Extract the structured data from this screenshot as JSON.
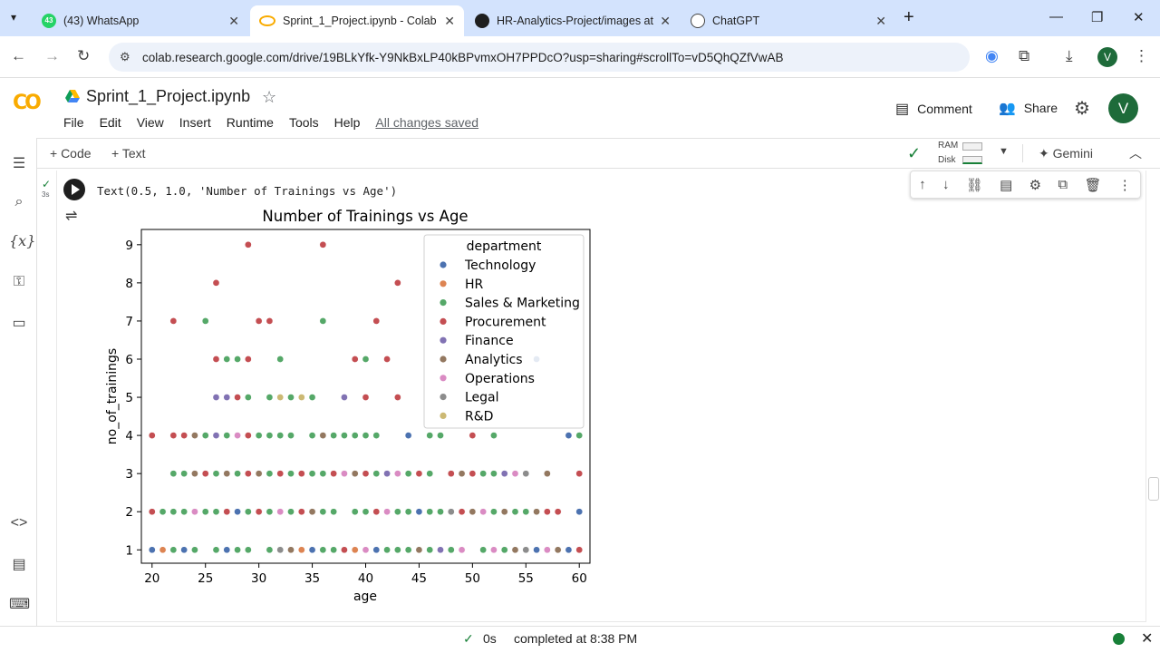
{
  "browser": {
    "tabs": [
      {
        "title": "(43) WhatsApp",
        "icon": "whatsapp-icon",
        "badge": "43"
      },
      {
        "title": "Sprint_1_Project.ipynb - Colab",
        "icon": "colab-icon"
      },
      {
        "title": "HR-Analytics-Project/images at",
        "icon": "github-icon"
      },
      {
        "title": "ChatGPT",
        "icon": "chatgpt-icon"
      }
    ],
    "url": "colab.research.google.com/drive/19BLkYfk-Y9NkBxLP40kBPvmxOH7PPDcO?usp=sharing#scrollTo=vD5QhQZfVwAB",
    "profile_initial": "V"
  },
  "colab": {
    "notebook_title": "Sprint_1_Project.ipynb",
    "menu": [
      "File",
      "Edit",
      "View",
      "Insert",
      "Runtime",
      "Tools",
      "Help"
    ],
    "save_status": "All changes saved",
    "comment_label": "Comment",
    "share_label": "Share",
    "user_initial": "V",
    "add_code": "+ Code",
    "add_text": "+ Text",
    "ram_label": "RAM",
    "disk_label": "Disk",
    "gemini_label": "Gemini",
    "exec_time": "3s"
  },
  "output": {
    "text": "Text(0.5, 1.0, 'Number of Trainings vs Age')"
  },
  "status": {
    "time": "0s",
    "message": "completed at 8:38 PM"
  },
  "chart_data": {
    "type": "scatter",
    "title": "Number of Trainings vs Age",
    "xlabel": "age",
    "ylabel": "no_of_trainings",
    "xlim": [
      19,
      61
    ],
    "ylim": [
      0.65,
      9.4
    ],
    "xticks": [
      20,
      25,
      30,
      35,
      40,
      45,
      50,
      55,
      60
    ],
    "yticks": [
      1,
      2,
      3,
      4,
      5,
      6,
      7,
      8,
      9
    ],
    "legend_title": "department",
    "legend_position": "upper right",
    "series": [
      {
        "name": "Technology",
        "color": "#4c72b0",
        "points": [
          [
            20,
            1
          ],
          [
            23,
            1
          ],
          [
            27,
            1
          ],
          [
            31,
            1
          ],
          [
            35,
            1
          ],
          [
            41,
            1
          ],
          [
            48,
            1
          ],
          [
            53,
            1
          ],
          [
            56,
            1
          ],
          [
            59,
            1
          ],
          [
            28,
            2
          ],
          [
            30,
            2
          ],
          [
            35,
            2
          ],
          [
            45,
            2
          ],
          [
            60,
            2
          ],
          [
            44,
            4
          ],
          [
            59,
            4
          ],
          [
            48,
            3
          ],
          [
            56,
            6
          ]
        ]
      },
      {
        "name": "HR",
        "color": "#dd8452",
        "points": [
          [
            21,
            1
          ],
          [
            34,
            1
          ],
          [
            39,
            1
          ],
          [
            49,
            1
          ],
          [
            57,
            1
          ]
        ]
      },
      {
        "name": "Sales & Marketing",
        "color": "#55a868",
        "points": [
          [
            22,
            1
          ],
          [
            24,
            1
          ],
          [
            26,
            1
          ],
          [
            28,
            1
          ],
          [
            29,
            1
          ],
          [
            31,
            1
          ],
          [
            32,
            1
          ],
          [
            36,
            1
          ],
          [
            37,
            1
          ],
          [
            38,
            1
          ],
          [
            42,
            1
          ],
          [
            43,
            1
          ],
          [
            44,
            1
          ],
          [
            46,
            1
          ],
          [
            48,
            1
          ],
          [
            51,
            1
          ],
          [
            53,
            1
          ],
          [
            55,
            1
          ],
          [
            21,
            2
          ],
          [
            22,
            2
          ],
          [
            23,
            2
          ],
          [
            24,
            2
          ],
          [
            25,
            2
          ],
          [
            26,
            2
          ],
          [
            27,
            2
          ],
          [
            29,
            2
          ],
          [
            31,
            2
          ],
          [
            33,
            2
          ],
          [
            36,
            2
          ],
          [
            37,
            2
          ],
          [
            39,
            2
          ],
          [
            40,
            2
          ],
          [
            43,
            2
          ],
          [
            44,
            2
          ],
          [
            46,
            2
          ],
          [
            47,
            2
          ],
          [
            52,
            2
          ],
          [
            54,
            2
          ],
          [
            55,
            2
          ],
          [
            22,
            3
          ],
          [
            23,
            3
          ],
          [
            26,
            3
          ],
          [
            28,
            3
          ],
          [
            31,
            3
          ],
          [
            33,
            3
          ],
          [
            35,
            3
          ],
          [
            36,
            3
          ],
          [
            38,
            3
          ],
          [
            41,
            3
          ],
          [
            44,
            3
          ],
          [
            46,
            3
          ],
          [
            51,
            3
          ],
          [
            52,
            3
          ],
          [
            25,
            4
          ],
          [
            27,
            4
          ],
          [
            28,
            4
          ],
          [
            30,
            4
          ],
          [
            31,
            4
          ],
          [
            32,
            4
          ],
          [
            33,
            4
          ],
          [
            35,
            4
          ],
          [
            36,
            4
          ],
          [
            37,
            4
          ],
          [
            38,
            4
          ],
          [
            39,
            4
          ],
          [
            40,
            4
          ],
          [
            41,
            4
          ],
          [
            46,
            4
          ],
          [
            47,
            4
          ],
          [
            52,
            4
          ],
          [
            60,
            4
          ],
          [
            29,
            5
          ],
          [
            31,
            5
          ],
          [
            33,
            5
          ],
          [
            35,
            5
          ],
          [
            27,
            6
          ],
          [
            28,
            6
          ],
          [
            32,
            6
          ],
          [
            40,
            6
          ],
          [
            25,
            7
          ],
          [
            36,
            7
          ]
        ]
      },
      {
        "name": "Procurement",
        "color": "#c44e52",
        "points": [
          [
            38,
            1
          ],
          [
            60,
            1
          ],
          [
            20,
            2
          ],
          [
            27,
            2
          ],
          [
            30,
            2
          ],
          [
            34,
            2
          ],
          [
            41,
            2
          ],
          [
            49,
            2
          ],
          [
            57,
            2
          ],
          [
            58,
            2
          ],
          [
            25,
            3
          ],
          [
            29,
            3
          ],
          [
            32,
            3
          ],
          [
            34,
            3
          ],
          [
            37,
            3
          ],
          [
            40,
            3
          ],
          [
            42,
            3
          ],
          [
            45,
            3
          ],
          [
            48,
            3
          ],
          [
            50,
            3
          ],
          [
            60,
            3
          ],
          [
            20,
            4
          ],
          [
            22,
            4
          ],
          [
            23,
            4
          ],
          [
            29,
            4
          ],
          [
            50,
            4
          ],
          [
            28,
            5
          ],
          [
            40,
            5
          ],
          [
            43,
            5
          ],
          [
            26,
            6
          ],
          [
            29,
            6
          ],
          [
            39,
            6
          ],
          [
            42,
            6
          ],
          [
            22,
            7
          ],
          [
            30,
            7
          ],
          [
            31,
            7
          ],
          [
            41,
            7
          ],
          [
            26,
            8
          ],
          [
            43,
            8
          ],
          [
            29,
            9
          ],
          [
            36,
            9
          ]
        ]
      },
      {
        "name": "Finance",
        "color": "#8172b3",
        "points": [
          [
            47,
            1
          ],
          [
            26,
            4
          ],
          [
            42,
            3
          ],
          [
            53,
            3
          ],
          [
            26,
            5
          ],
          [
            27,
            5
          ],
          [
            38,
            5
          ]
        ]
      },
      {
        "name": "Analytics",
        "color": "#937860",
        "points": [
          [
            33,
            1
          ],
          [
            45,
            1
          ],
          [
            54,
            1
          ],
          [
            58,
            1
          ],
          [
            35,
            2
          ],
          [
            50,
            2
          ],
          [
            53,
            2
          ],
          [
            56,
            2
          ],
          [
            24,
            3
          ],
          [
            27,
            3
          ],
          [
            30,
            3
          ],
          [
            39,
            3
          ],
          [
            49,
            3
          ],
          [
            57,
            3
          ],
          [
            24,
            4
          ],
          [
            36,
            4
          ]
        ]
      },
      {
        "name": "Operations",
        "color": "#da8bc3",
        "points": [
          [
            40,
            1
          ],
          [
            49,
            1
          ],
          [
            52,
            1
          ],
          [
            57,
            1
          ],
          [
            24,
            2
          ],
          [
            32,
            2
          ],
          [
            42,
            2
          ],
          [
            51,
            2
          ],
          [
            28,
            4
          ],
          [
            38,
            3
          ],
          [
            43,
            3
          ],
          [
            54,
            3
          ]
        ]
      },
      {
        "name": "Legal",
        "color": "#8c8c8c",
        "points": [
          [
            32,
            1
          ],
          [
            48,
            2
          ],
          [
            55,
            3
          ],
          [
            55,
            1
          ]
        ]
      },
      {
        "name": "R&D",
        "color": "#ccb974",
        "points": [
          [
            32,
            5
          ],
          [
            34,
            5
          ]
        ]
      }
    ]
  }
}
